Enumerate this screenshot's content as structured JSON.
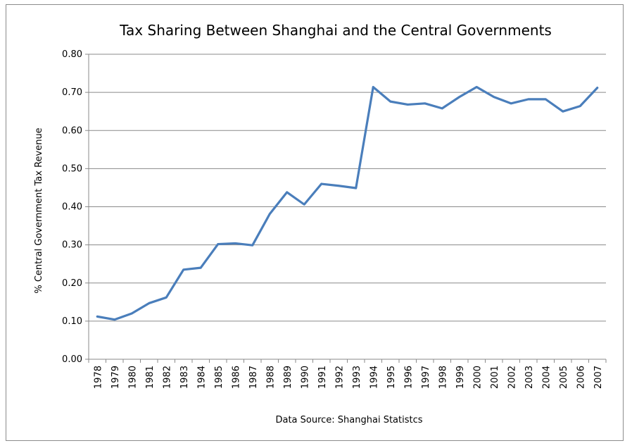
{
  "chart_data": {
    "type": "line",
    "title": "Tax Sharing Between Shanghai and the Central Governments",
    "ylabel": "% Central Government Tax Revenue",
    "xlabel": "Data Source:  Shanghai  Statistcs",
    "ylim": [
      0,
      0.8
    ],
    "yticks": [
      "0.00",
      "0.10",
      "0.20",
      "0.30",
      "0.40",
      "0.50",
      "0.60",
      "0.70",
      "0.80"
    ],
    "grid": true,
    "legend": "none",
    "x": [
      "1978",
      "1979",
      "1980",
      "1981",
      "1982",
      "1983",
      "1984",
      "1985",
      "1986",
      "1987",
      "1988",
      "1989",
      "1990",
      "1991",
      "1992",
      "1993",
      "1994",
      "1995",
      "1996",
      "1997",
      "1998",
      "1999",
      "2000",
      "2001",
      "2002",
      "2003",
      "2004",
      "2005",
      "2006",
      "2007"
    ],
    "series": [
      {
        "color": "#4a7ebb",
        "values": [
          0.112,
          0.104,
          0.12,
          0.147,
          0.162,
          0.235,
          0.24,
          0.302,
          0.304,
          0.299,
          0.381,
          0.438,
          0.406,
          0.46,
          0.455,
          0.449,
          0.714,
          0.676,
          0.668,
          0.671,
          0.658,
          0.688,
          0.714,
          0.688,
          0.671,
          0.682,
          0.682,
          0.65,
          0.664,
          0.712
        ]
      }
    ]
  }
}
